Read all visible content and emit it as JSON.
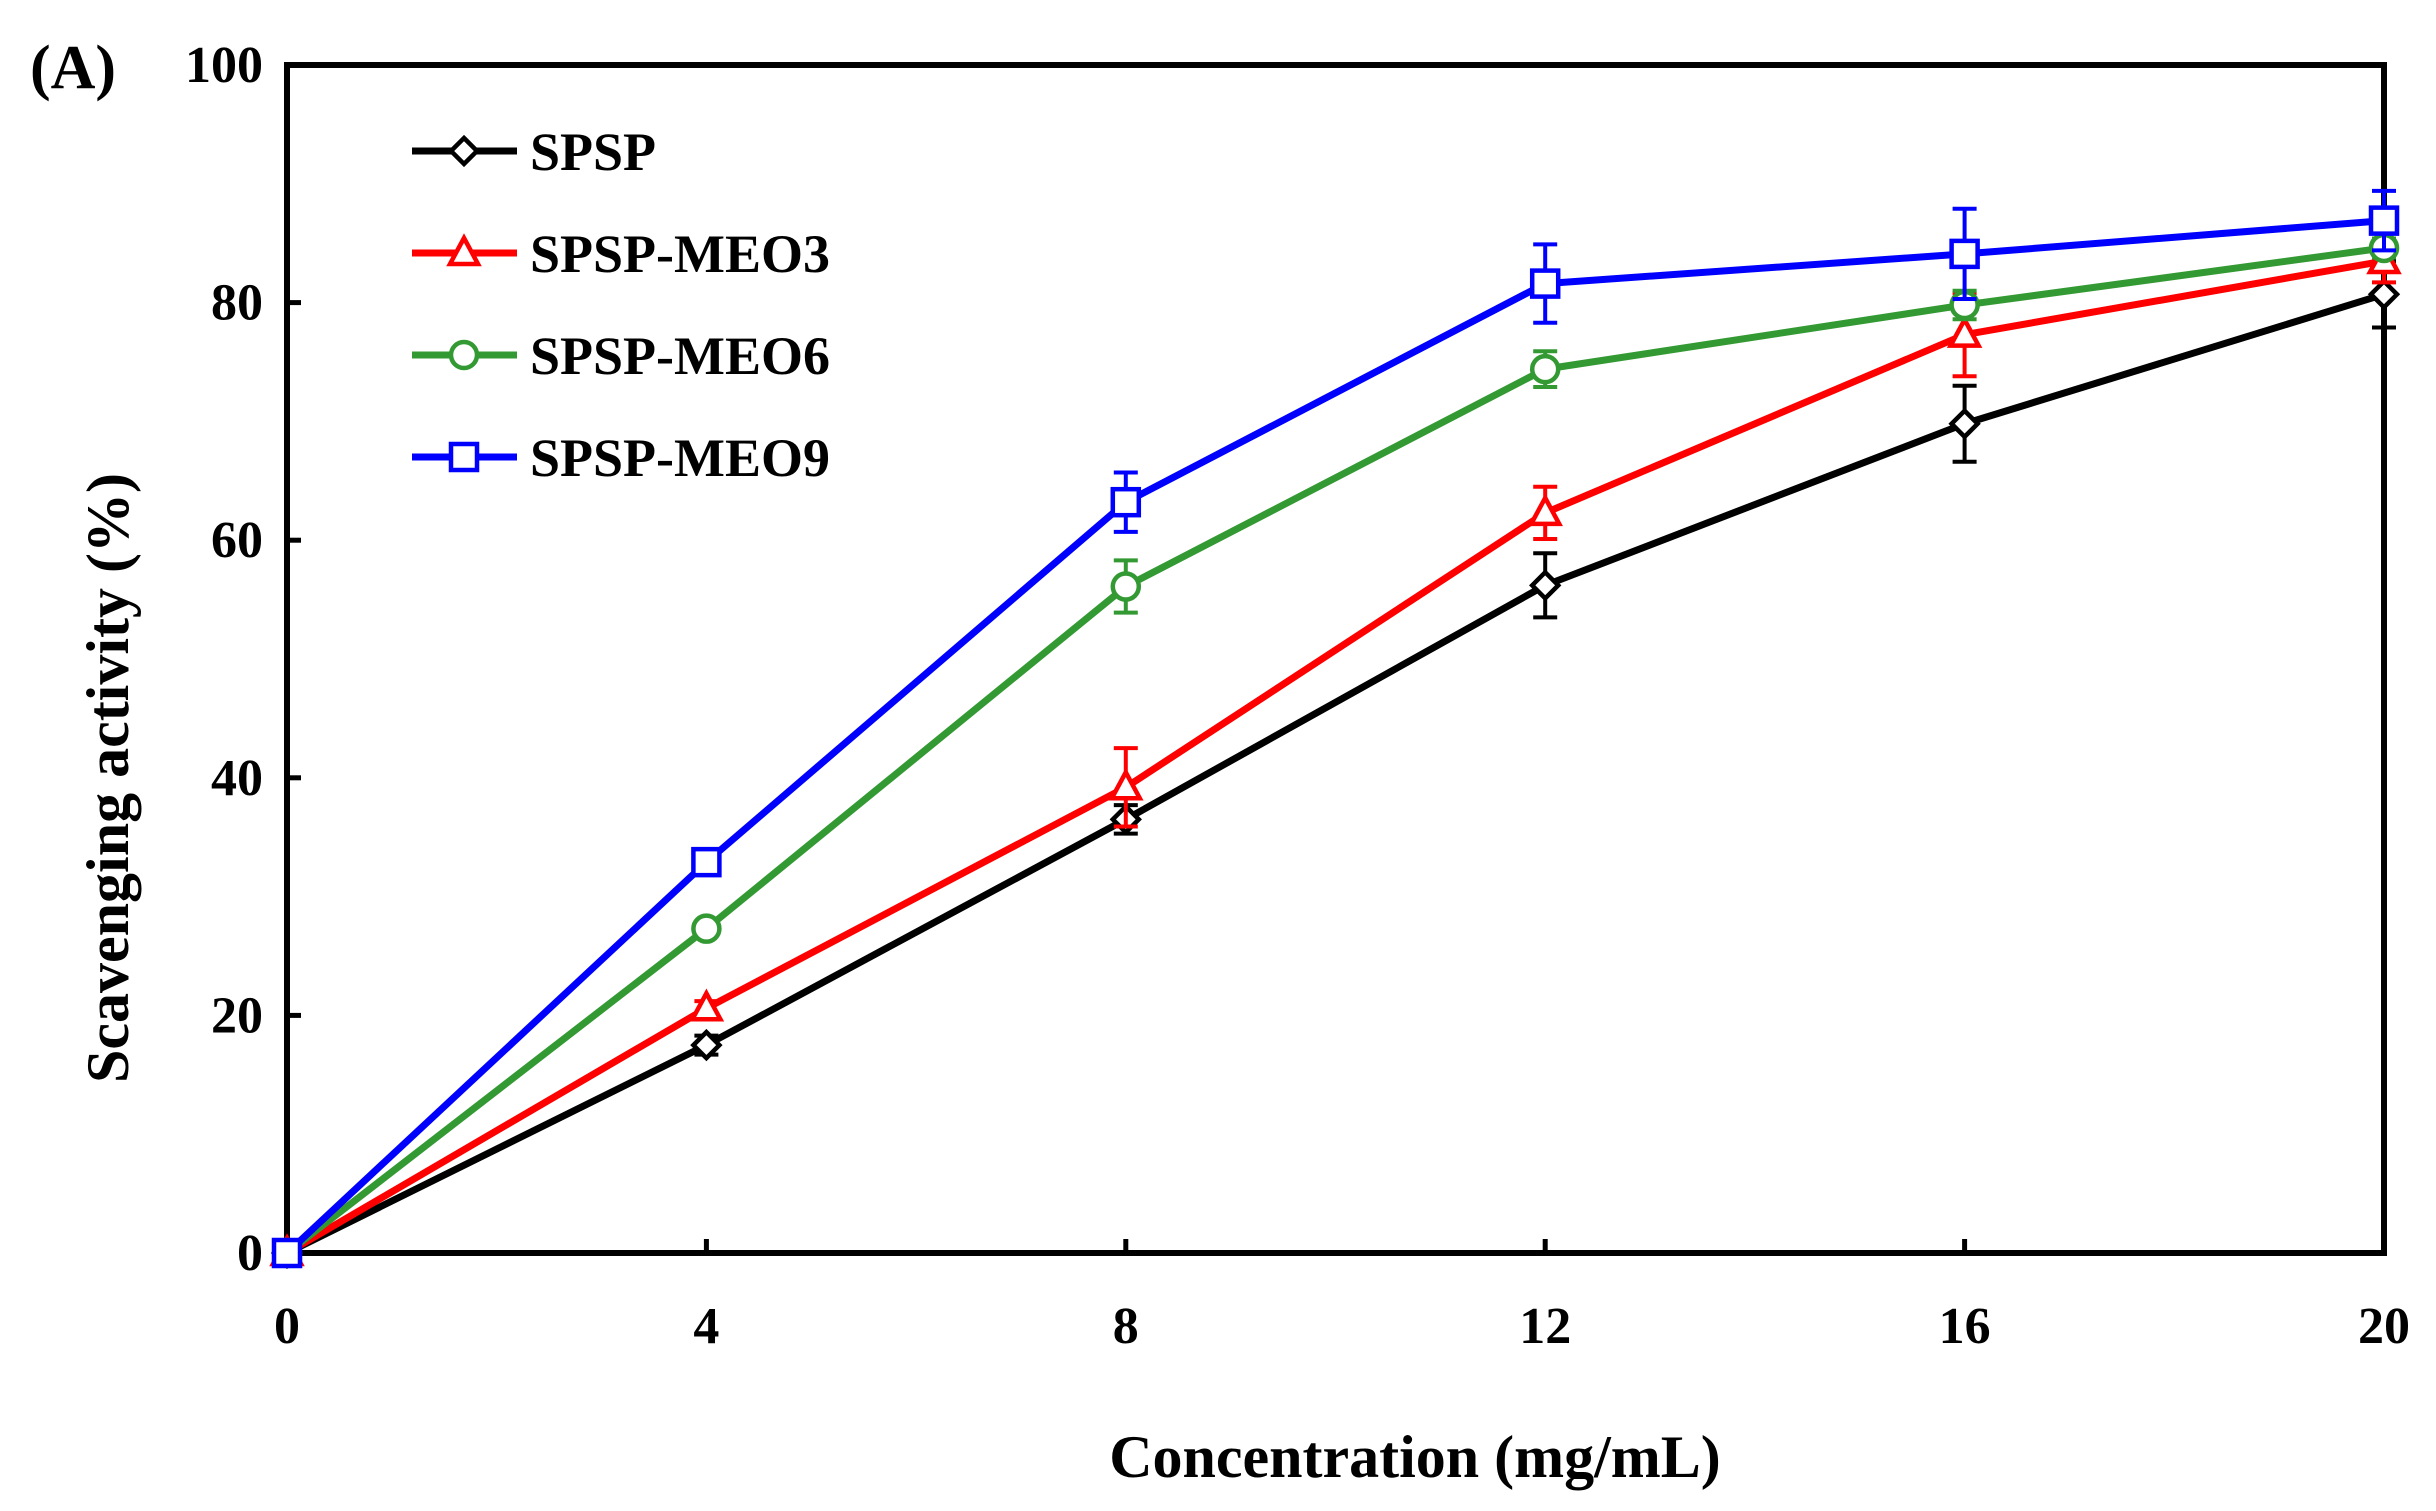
{
  "panel_label": "(A)",
  "chart_data": {
    "type": "line",
    "title": "",
    "xlabel": "Concentration (mg/mL)",
    "ylabel": "Scavenging activity (%)",
    "xlim": [
      0,
      20
    ],
    "ylim": [
      0,
      100
    ],
    "x": [
      0,
      4,
      8,
      12,
      16,
      20
    ],
    "xticks": [
      "0",
      "4",
      "8",
      "12",
      "16",
      "20"
    ],
    "yticks": [
      "0",
      "20",
      "40",
      "60",
      "80",
      "100"
    ],
    "grid": false,
    "legend_position": "top-left",
    "series": [
      {
        "name": "SPSP",
        "color": "#000000",
        "marker": "diamond",
        "values": [
          0,
          17.5,
          36.5,
          56.2,
          69.8,
          80.7
        ],
        "errors": [
          0,
          0.8,
          1.2,
          2.7,
          3.2,
          2.8
        ]
      },
      {
        "name": "SPSP-MEO3",
        "color": "#ff0000",
        "marker": "triangle",
        "values": [
          0,
          20.6,
          39.2,
          62.3,
          77.3,
          83.5
        ],
        "errors": [
          0,
          0.6,
          3.3,
          2.2,
          3.5,
          1.8
        ]
      },
      {
        "name": "SPSP-MEO6",
        "color": "#339933",
        "marker": "circle",
        "values": [
          0,
          27.3,
          56.1,
          74.4,
          79.8,
          84.6
        ],
        "errors": [
          0,
          0.6,
          2.2,
          1.5,
          1.2,
          0.8
        ]
      },
      {
        "name": "SPSP-MEO9",
        "color": "#0000ff",
        "marker": "square",
        "values": [
          0,
          32.9,
          63.2,
          81.6,
          84.1,
          86.9
        ],
        "errors": [
          0,
          0.5,
          2.5,
          3.3,
          3.8,
          2.5
        ]
      }
    ]
  }
}
